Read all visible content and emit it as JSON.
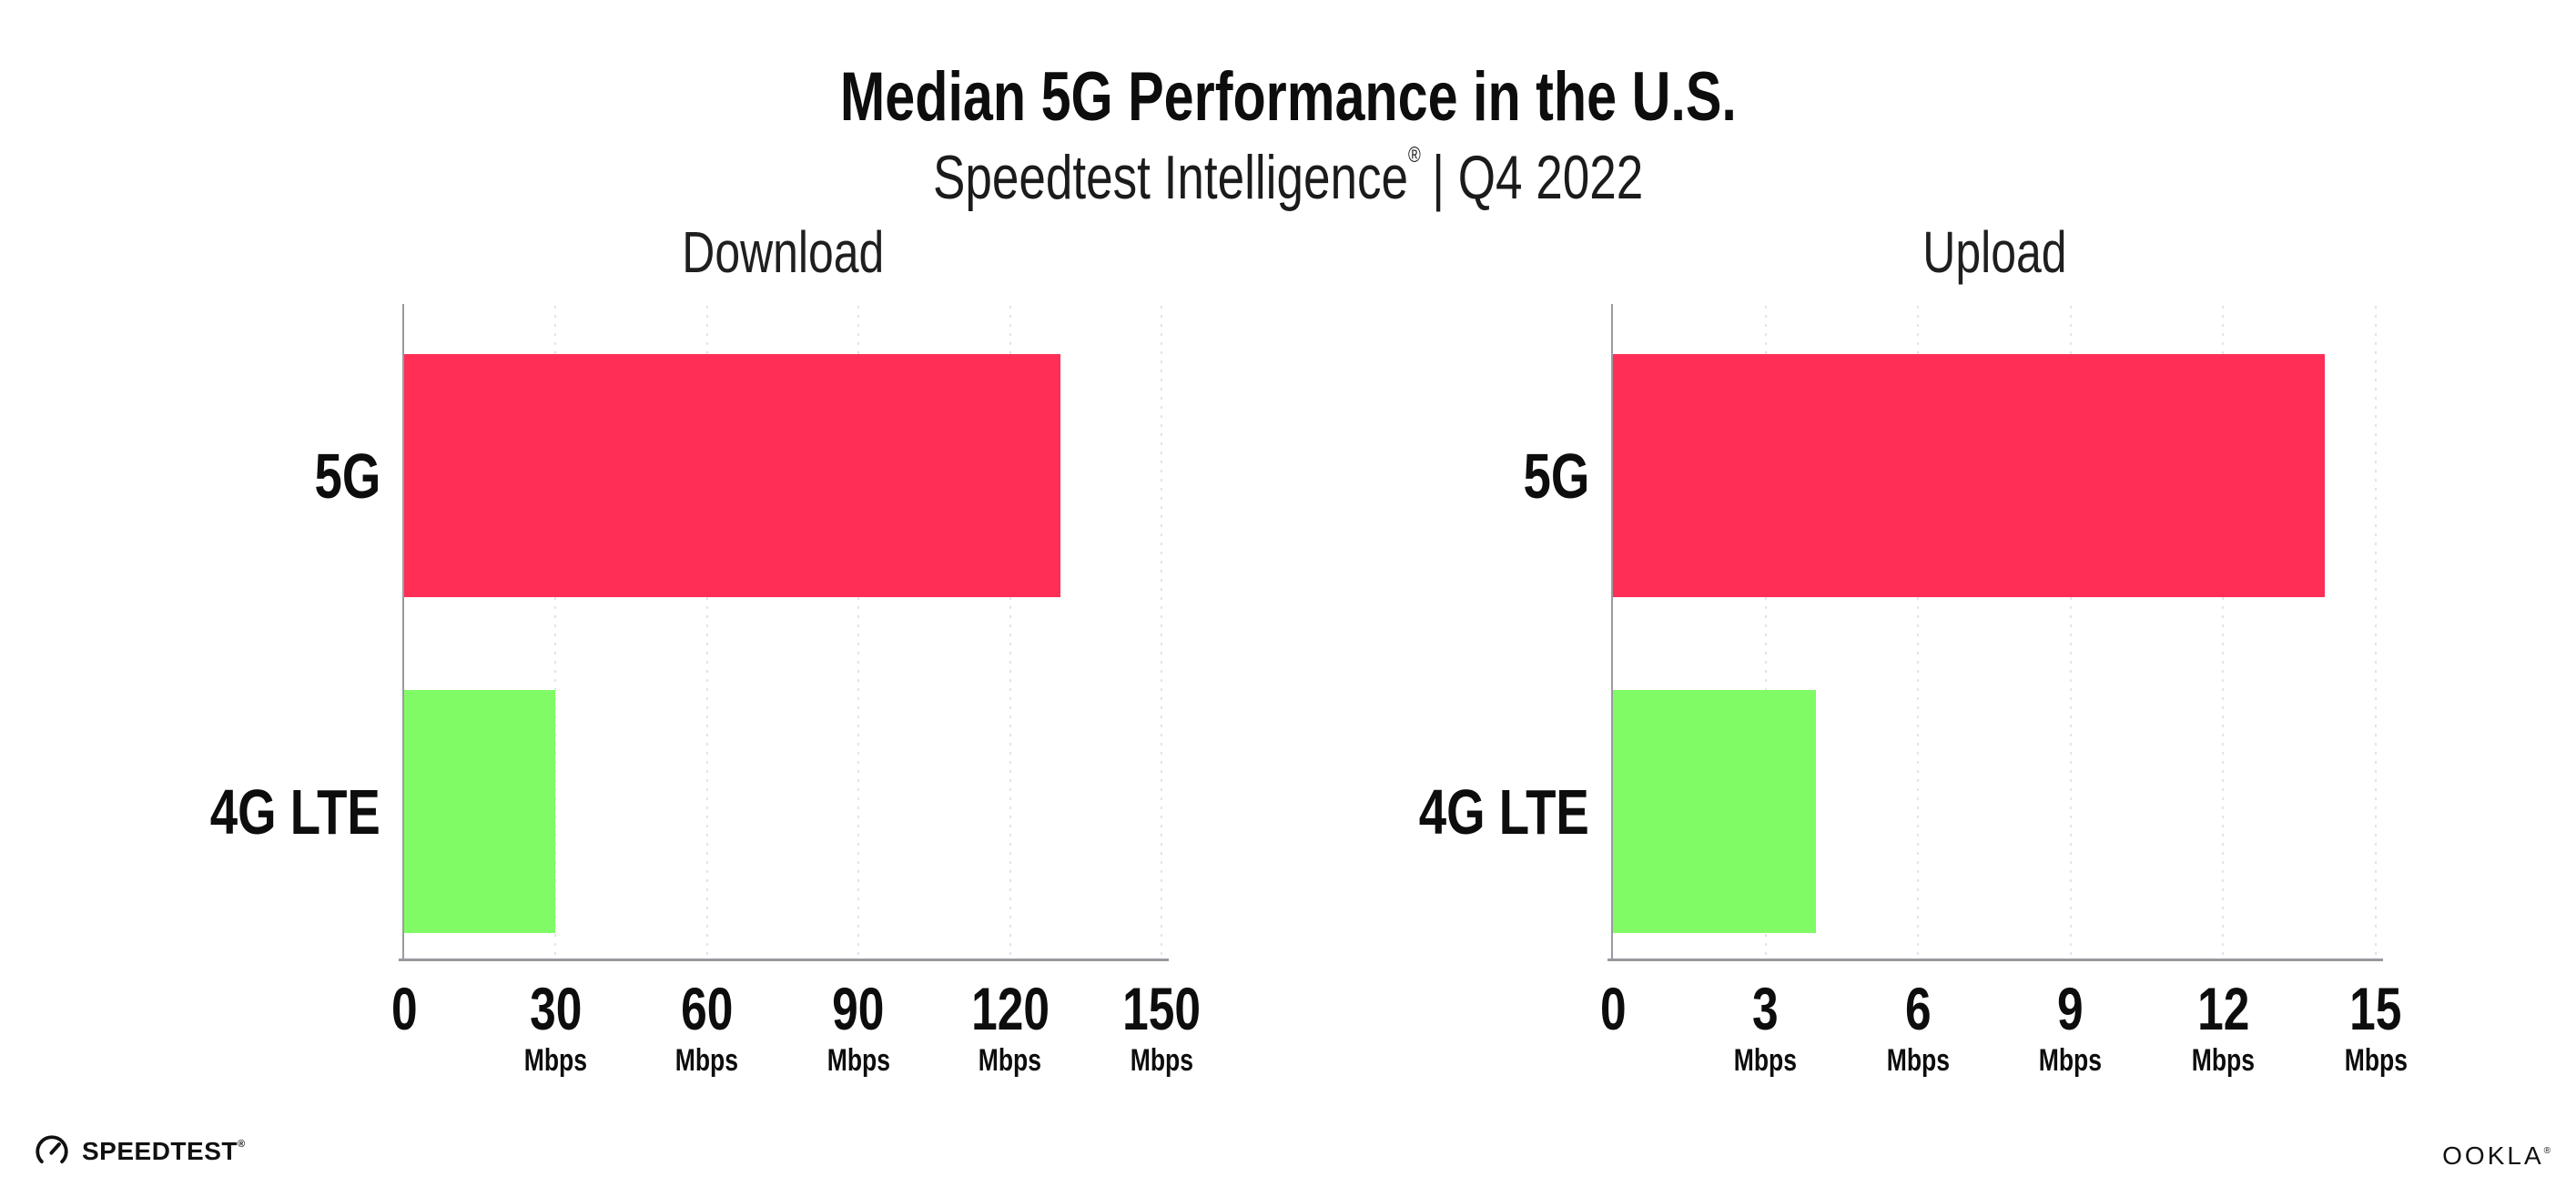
{
  "header": {
    "title": "Median 5G Performance in the U.S.",
    "subtitle_brand": "Speedtest Intelligence",
    "registered_mark": "®",
    "subtitle_suffix": "| Q4 2022"
  },
  "colors": {
    "bar_5g": "#FF2E57",
    "bar_4g": "#80FB66",
    "gridline": "#e3e3ea",
    "axis": "#9a9aa0",
    "text": "#0d0d0d"
  },
  "chart_data": [
    {
      "type": "bar",
      "orientation": "horizontal",
      "title": "Download",
      "categories": [
        "5G",
        "4G LTE"
      ],
      "values": [
        130,
        30
      ],
      "value_unit": "Mbps",
      "xlabel": "",
      "ylabel": "",
      "xlim": [
        0,
        150
      ],
      "xticks": [
        0,
        30,
        60,
        90,
        120,
        150
      ],
      "tick_unit_label": "Mbps",
      "grid": "vertical-dotted",
      "legend": "none"
    },
    {
      "type": "bar",
      "orientation": "horizontal",
      "title": "Upload",
      "categories": [
        "5G",
        "4G LTE"
      ],
      "values": [
        14,
        4
      ],
      "value_unit": "Mbps",
      "xlabel": "",
      "ylabel": "",
      "xlim": [
        0,
        15
      ],
      "xticks": [
        0,
        3,
        6,
        9,
        12,
        15
      ],
      "tick_unit_label": "Mbps",
      "grid": "vertical-dotted",
      "legend": "none"
    }
  ],
  "footer": {
    "speedtest_wordmark": "SPEEDTEST",
    "speedtest_mark": "®",
    "ookla_wordmark": "OOKLA",
    "ookla_mark": "®"
  }
}
